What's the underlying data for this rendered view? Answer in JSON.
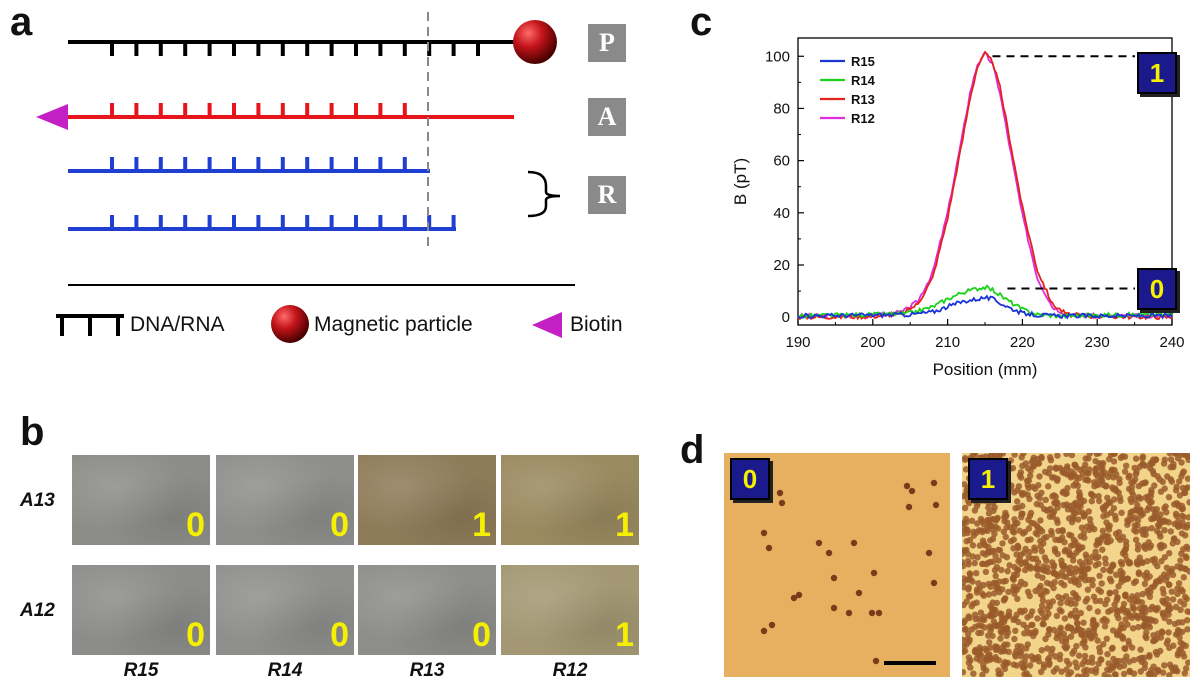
{
  "panels": {
    "a": "a",
    "b": "b",
    "c": "c",
    "d": "d"
  },
  "panel_a": {
    "badges": [
      "P",
      "A",
      "R"
    ],
    "legend": {
      "dna": "DNA/RNA",
      "particle": "Magnetic particle",
      "biotin": "Biotin"
    },
    "colors": {
      "probe": "#000000",
      "analyte": "#e8141b",
      "reporter": "#1f3fd0",
      "biotin": "#c41fc4",
      "particle": "#c4141b",
      "badge": "#8a8a8a"
    }
  },
  "panel_b": {
    "rows": [
      "A13",
      "A12"
    ],
    "cols": [
      "R15",
      "R14",
      "R13",
      "R12"
    ],
    "values": [
      [
        "0",
        "0",
        "1",
        "1"
      ],
      [
        "0",
        "0",
        "0",
        "1"
      ]
    ],
    "tile_colors": [
      [
        "#8c8c88",
        "#8e8e8c",
        "#8e7b58",
        "#9a8a60"
      ],
      [
        "#8c8c8a",
        "#8f8f8d",
        "#8d8d89",
        "#a39873"
      ]
    ]
  },
  "panel_d": {
    "states": [
      "0",
      "1"
    ]
  },
  "chart_data": {
    "type": "line",
    "xlabel": "Position (mm)",
    "ylabel": "B (pT)",
    "xlim": [
      190,
      240
    ],
    "ylim": [
      -3,
      107
    ],
    "xticks": [
      190,
      200,
      210,
      220,
      230,
      240
    ],
    "yticks": [
      0,
      20,
      40,
      60,
      80,
      100
    ],
    "legend_position": "top-left",
    "series": [
      {
        "name": "R15",
        "color": "#1a35d6",
        "x": [
          190,
          200,
          205,
          208,
          210,
          212,
          214,
          215,
          216,
          218,
          220,
          222,
          225,
          230,
          240
        ],
        "y": [
          0.5,
          0.8,
          1,
          2,
          4,
          6,
          7,
          7.5,
          7,
          4,
          1.5,
          0.8,
          0.5,
          0.5,
          0.5
        ]
      },
      {
        "name": "R14",
        "color": "#1ad21a",
        "x": [
          190,
          200,
          205,
          208,
          210,
          212,
          214,
          215,
          216,
          218,
          220,
          222,
          225,
          230,
          240
        ],
        "y": [
          0.5,
          1,
          1.5,
          4,
          7,
          9.5,
          11,
          11.5,
          10.5,
          6.5,
          3,
          1,
          0.5,
          0.8,
          1
        ]
      },
      {
        "name": "R13",
        "color": "#e2231c",
        "x": [
          190,
          200,
          204,
          206,
          208,
          210,
          212,
          213,
          214,
          215,
          216,
          217,
          218,
          220,
          222,
          224,
          226,
          230,
          240
        ],
        "y": [
          0,
          0.3,
          1.5,
          5,
          15,
          38,
          68,
          84,
          96,
          101,
          98,
          88,
          73,
          42,
          18,
          5,
          1,
          0.3,
          0
        ]
      },
      {
        "name": "R12",
        "color": "#e22be0",
        "x": [
          190,
          200,
          204,
          206,
          208,
          210,
          212,
          213,
          214,
          215,
          216,
          217,
          218,
          220,
          222,
          224,
          226,
          230,
          240
        ],
        "y": [
          0.5,
          0.5,
          2,
          6,
          17,
          40,
          70,
          86,
          97,
          101,
          97,
          86,
          70,
          39,
          15,
          4,
          1,
          0.5,
          0.5
        ]
      }
    ],
    "annotations": [
      {
        "label": "1",
        "y": 100
      },
      {
        "label": "0",
        "y": 11
      }
    ]
  }
}
